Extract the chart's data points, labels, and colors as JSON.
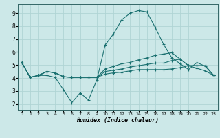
{
  "xlabel": "Humidex (Indice chaleur)",
  "ylabel": "",
  "xlim": [
    -0.5,
    23.5
  ],
  "ylim": [
    1.5,
    9.7
  ],
  "xticks": [
    0,
    1,
    2,
    3,
    4,
    5,
    6,
    7,
    8,
    9,
    10,
    11,
    12,
    13,
    14,
    15,
    16,
    17,
    18,
    19,
    20,
    21,
    22,
    23
  ],
  "yticks": [
    2,
    3,
    4,
    5,
    6,
    7,
    8,
    9
  ],
  "background_color": "#cce8e8",
  "grid_color": "#b0d4d4",
  "line_color": "#1a7070",
  "lines": [
    {
      "x": [
        0,
        1,
        2,
        3,
        4,
        5,
        6,
        7,
        8,
        9,
        10,
        11,
        12,
        13,
        14,
        15,
        16,
        17,
        18,
        19,
        20,
        21,
        22,
        23
      ],
      "y": [
        5.2,
        4.05,
        4.2,
        4.2,
        4.05,
        3.1,
        2.1,
        2.85,
        2.3,
        3.85,
        6.55,
        7.4,
        8.5,
        9.0,
        9.2,
        9.1,
        7.9,
        6.6,
        5.55,
        5.1,
        4.65,
        5.2,
        4.9,
        4.2
      ]
    },
    {
      "x": [
        0,
        1,
        2,
        3,
        4,
        5,
        6,
        7,
        8,
        9,
        10,
        11,
        12,
        13,
        14,
        15,
        16,
        17,
        18,
        19,
        20,
        21,
        22,
        23
      ],
      "y": [
        5.2,
        4.05,
        4.2,
        4.5,
        4.4,
        4.1,
        4.05,
        4.05,
        4.05,
        4.05,
        4.3,
        4.4,
        4.45,
        4.55,
        4.65,
        4.65,
        4.65,
        4.65,
        4.7,
        4.8,
        4.95,
        4.95,
        4.95,
        4.2
      ]
    },
    {
      "x": [
        0,
        1,
        2,
        3,
        4,
        5,
        6,
        7,
        8,
        9,
        10,
        11,
        12,
        13,
        14,
        15,
        16,
        17,
        18,
        19,
        20,
        21,
        22,
        23
      ],
      "y": [
        5.2,
        4.05,
        4.2,
        4.5,
        4.4,
        4.1,
        4.05,
        4.05,
        4.05,
        4.05,
        4.5,
        4.6,
        4.7,
        4.85,
        4.95,
        5.05,
        5.15,
        5.15,
        5.35,
        5.45,
        4.95,
        4.95,
        4.95,
        4.2
      ]
    },
    {
      "x": [
        0,
        1,
        2,
        3,
        4,
        5,
        6,
        7,
        8,
        9,
        10,
        11,
        12,
        13,
        14,
        15,
        16,
        17,
        18,
        19,
        20,
        21,
        22,
        23
      ],
      "y": [
        5.2,
        4.05,
        4.2,
        4.5,
        4.4,
        4.1,
        4.05,
        4.05,
        4.05,
        4.05,
        4.7,
        4.9,
        5.1,
        5.2,
        5.4,
        5.55,
        5.75,
        5.85,
        5.95,
        5.45,
        4.95,
        4.75,
        4.55,
        4.2
      ]
    }
  ]
}
